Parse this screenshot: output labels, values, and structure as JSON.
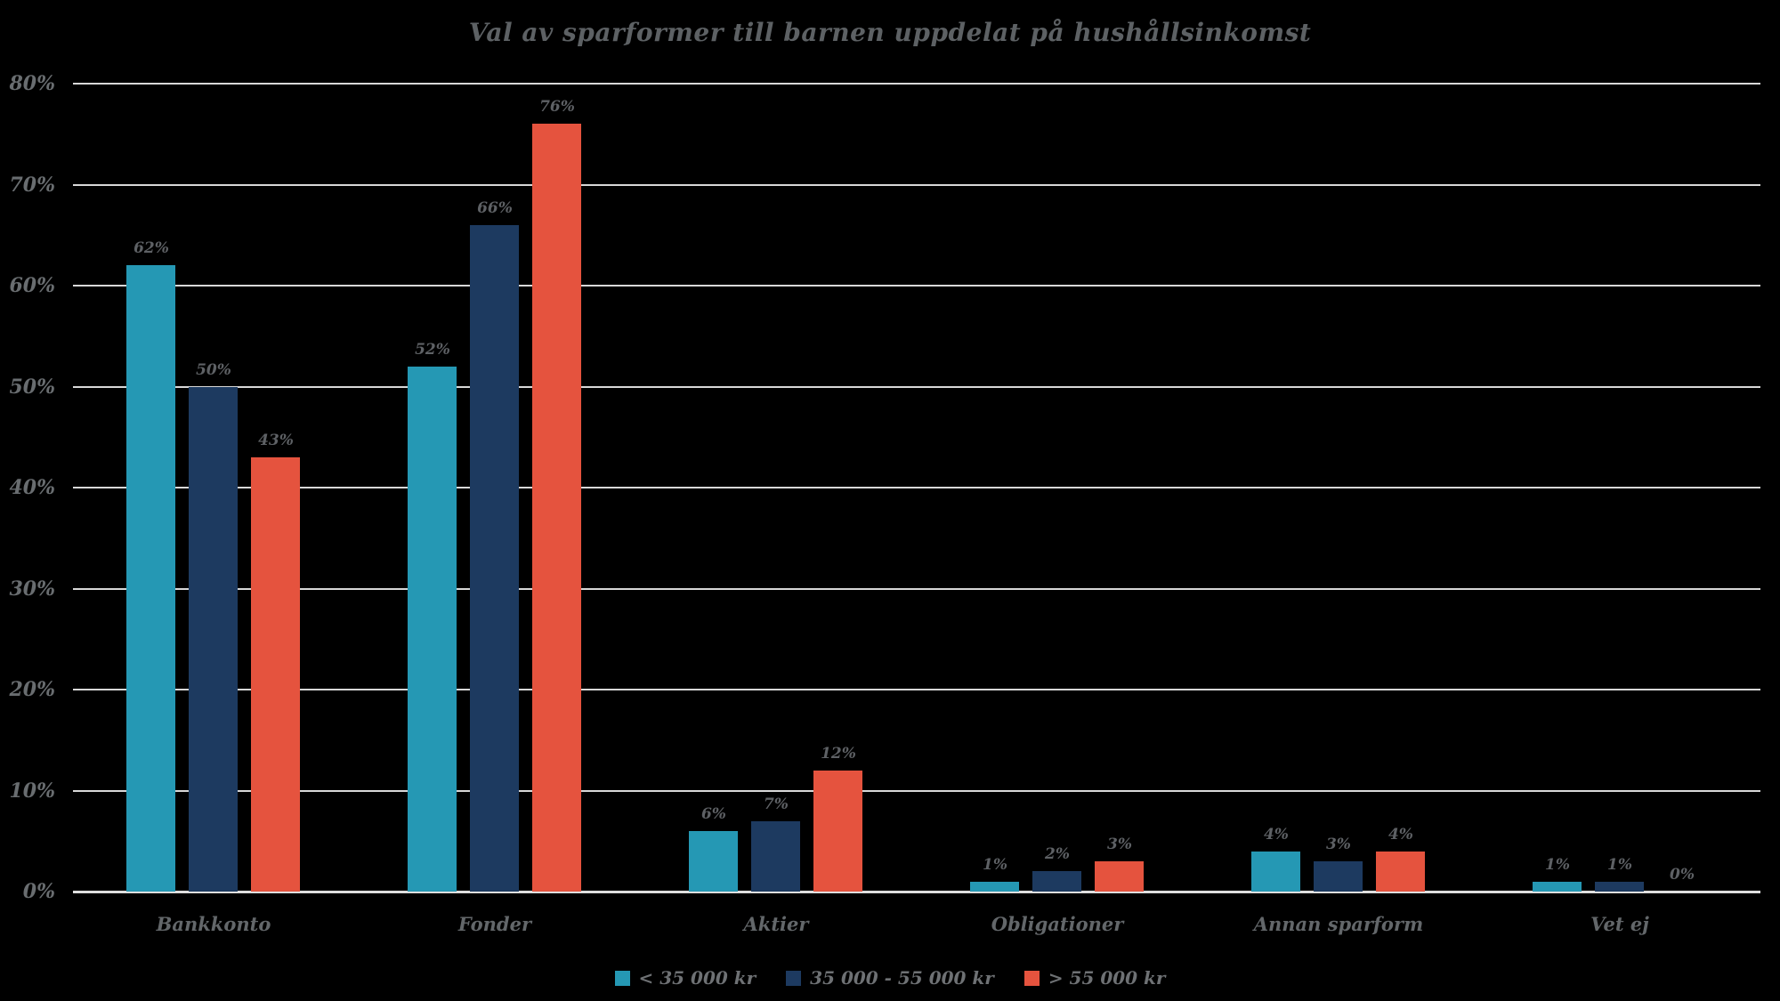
{
  "chart_data": {
    "type": "bar",
    "title": "Val av sparformer till barnen uppdelat på hushållsinkomst",
    "categories": [
      "Bankkonto",
      "Fonder",
      "Aktier",
      "Obligationer",
      "Annan sparform",
      "Vet ej"
    ],
    "series": [
      {
        "name": "< 35 000 kr",
        "color": "#2598b4",
        "values": [
          62,
          52,
          6,
          1,
          4,
          1
        ]
      },
      {
        "name": "35 000 - 55 000 kr",
        "color": "#1d3a60",
        "values": [
          50,
          66,
          7,
          2,
          3,
          1
        ]
      },
      {
        "name": "> 55 000 kr",
        "color": "#e5533e",
        "values": [
          43,
          76,
          12,
          3,
          4,
          0
        ]
      }
    ],
    "value_label_suffix": "%",
    "y_axis": {
      "min": 0,
      "max": 80,
      "step": 10,
      "tick_suffix": "%",
      "tick_labels": [
        "0%",
        "10%",
        "20%",
        "30%",
        "40%",
        "50%",
        "60%",
        "70%",
        "80%"
      ]
    },
    "grid": true,
    "legend_position": "bottom",
    "colors": {
      "background": "#000000",
      "gridline": "#d8d8d8",
      "title_text": "#5d6164",
      "axis_text": "#696d70",
      "category_text": "#63676a",
      "value_text": "#5e6165",
      "legend_text": "#6e7174"
    }
  }
}
